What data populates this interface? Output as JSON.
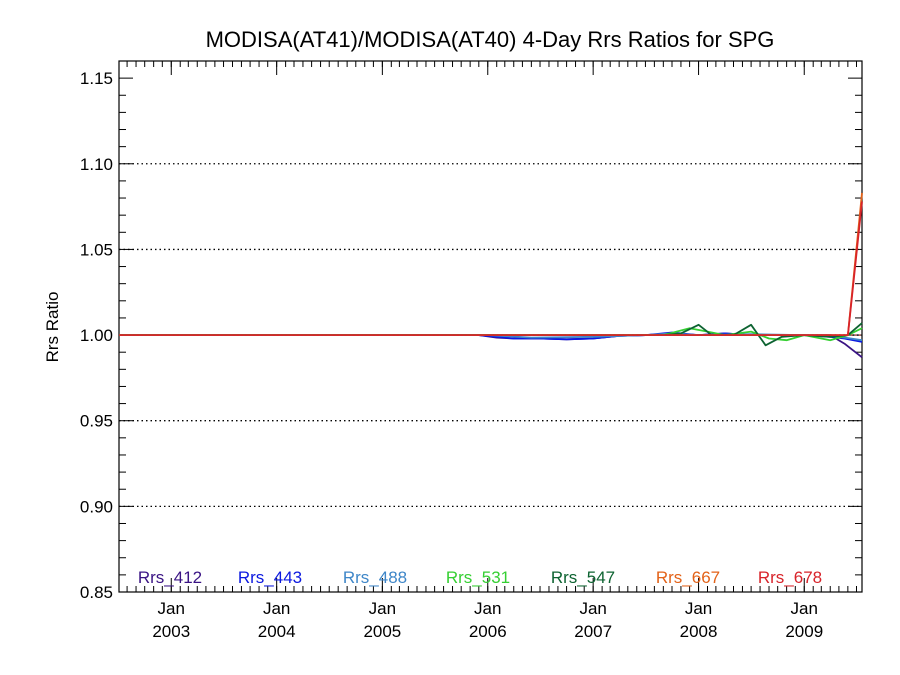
{
  "chart_data": {
    "type": "line",
    "title": "MODISA(AT41)/MODISA(AT40) 4-Day Rrs Ratios for SPG",
    "xlabel": "",
    "ylabel": "Rrs Ratio",
    "ylim": [
      0.85,
      1.16
    ],
    "yticks": [
      "0.85",
      "0.90",
      "0.95",
      "1.00",
      "1.05",
      "1.10",
      "1.15"
    ],
    "y_gridlines": [
      0.9,
      0.95,
      1.0,
      1.05,
      1.1
    ],
    "grid": "dotted horizontal",
    "xlim": [
      "2002-07-04",
      "2009-07-20"
    ],
    "xticks": [
      {
        "date": "2003-01-01",
        "month": "Jan",
        "year": "2003"
      },
      {
        "date": "2004-01-01",
        "month": "Jan",
        "year": "2004"
      },
      {
        "date": "2005-01-01",
        "month": "Jan",
        "year": "2005"
      },
      {
        "date": "2006-01-01",
        "month": "Jan",
        "year": "2006"
      },
      {
        "date": "2007-01-01",
        "month": "Jan",
        "year": "2007"
      },
      {
        "date": "2008-01-01",
        "month": "Jan",
        "year": "2008"
      },
      {
        "date": "2009-01-01",
        "month": "Jan",
        "year": "2009"
      }
    ],
    "legend_position": "bottom",
    "reference_line": {
      "y": 1.0,
      "color": "#c0392b",
      "style": "dotted"
    },
    "series": [
      {
        "name": "Rrs_412",
        "color": "#3a1384",
        "points": [
          [
            "2002-07-04",
            1.0
          ],
          [
            "2005-12-01",
            1.0
          ],
          [
            "2006-02-01",
            0.9985
          ],
          [
            "2006-04-01",
            0.998
          ],
          [
            "2006-07-01",
            0.998
          ],
          [
            "2006-10-01",
            0.9975
          ],
          [
            "2007-01-01",
            0.998
          ],
          [
            "2007-04-01",
            0.9995
          ],
          [
            "2007-07-01",
            1.0
          ],
          [
            "2007-10-01",
            1.001
          ],
          [
            "2008-01-01",
            1.0
          ],
          [
            "2008-04-01",
            1.001
          ],
          [
            "2008-07-01",
            1.0
          ],
          [
            "2008-10-01",
            1.0
          ],
          [
            "2009-01-01",
            1.0
          ],
          [
            "2009-04-01",
            1.0
          ],
          [
            "2009-05-20",
            0.995
          ],
          [
            "2009-07-20",
            0.987
          ]
        ]
      },
      {
        "name": "Rrs_443",
        "color": "#0b18e0",
        "points": [
          [
            "2002-07-04",
            1.0
          ],
          [
            "2005-12-01",
            1.0
          ],
          [
            "2006-02-01",
            0.999
          ],
          [
            "2006-04-01",
            0.998
          ],
          [
            "2006-07-01",
            0.998
          ],
          [
            "2006-10-01",
            0.9975
          ],
          [
            "2007-01-01",
            0.998
          ],
          [
            "2007-04-01",
            0.9995
          ],
          [
            "2007-07-01",
            1.0
          ],
          [
            "2007-10-01",
            1.0015
          ],
          [
            "2008-01-01",
            1.0
          ],
          [
            "2008-04-01",
            1.001
          ],
          [
            "2008-07-01",
            1.0
          ],
          [
            "2008-10-01",
            1.0
          ],
          [
            "2009-01-01",
            1.0
          ],
          [
            "2009-04-01",
            0.999
          ],
          [
            "2009-05-20",
            0.998
          ],
          [
            "2009-07-20",
            0.996
          ]
        ]
      },
      {
        "name": "Rrs_488",
        "color": "#3e86c8",
        "points": [
          [
            "2002-07-04",
            1.0
          ],
          [
            "2006-01-01",
            1.0
          ],
          [
            "2006-06-01",
            0.9985
          ],
          [
            "2007-01-01",
            0.999
          ],
          [
            "2007-07-01",
            1.0
          ],
          [
            "2007-10-01",
            1.001
          ],
          [
            "2008-01-01",
            1.0
          ],
          [
            "2008-07-01",
            1.0005
          ],
          [
            "2009-01-01",
            1.0
          ],
          [
            "2009-05-01",
            0.999
          ],
          [
            "2009-07-20",
            0.997
          ]
        ]
      },
      {
        "name": "Rrs_531",
        "color": "#35cf32",
        "points": [
          [
            "2002-07-04",
            1.0
          ],
          [
            "2007-09-01",
            1.0
          ],
          [
            "2007-12-01",
            1.004
          ],
          [
            "2008-02-01",
            1.002
          ],
          [
            "2008-04-01",
            1.0
          ],
          [
            "2008-07-01",
            1.002
          ],
          [
            "2008-09-01",
            0.998
          ],
          [
            "2008-11-01",
            0.997
          ],
          [
            "2009-01-01",
            1.0
          ],
          [
            "2009-04-01",
            0.997
          ],
          [
            "2009-06-01",
            1.0
          ],
          [
            "2009-07-20",
            1.004
          ]
        ]
      },
      {
        "name": "Rrs_547",
        "color": "#0d6331",
        "points": [
          [
            "2002-07-04",
            1.0
          ],
          [
            "2007-09-01",
            1.0
          ],
          [
            "2007-11-01",
            1.001
          ],
          [
            "2008-01-01",
            1.006
          ],
          [
            "2008-02-15",
            1.0
          ],
          [
            "2008-05-01",
            1.0
          ],
          [
            "2008-07-01",
            1.006
          ],
          [
            "2008-08-20",
            0.994
          ],
          [
            "2008-10-15",
            0.999
          ],
          [
            "2009-01-01",
            1.0
          ],
          [
            "2009-04-01",
            0.999
          ],
          [
            "2009-06-01",
            1.0
          ],
          [
            "2009-07-20",
            1.007
          ]
        ]
      },
      {
        "name": "Rrs_667",
        "color": "#e36218",
        "points": [
          [
            "2002-07-04",
            1.0
          ],
          [
            "2009-06-01",
            1.0
          ],
          [
            "2009-07-20",
            1.083
          ]
        ]
      },
      {
        "name": "Rrs_678",
        "color": "#d8232a",
        "points": [
          [
            "2002-07-04",
            1.0
          ],
          [
            "2009-06-01",
            1.0
          ],
          [
            "2009-07-20",
            1.078
          ]
        ]
      }
    ]
  }
}
